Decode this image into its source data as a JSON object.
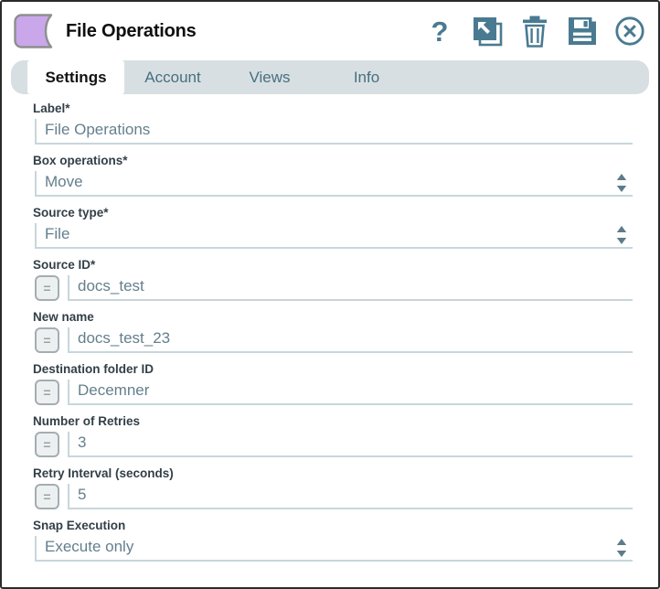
{
  "window": {
    "title": "File Operations"
  },
  "header": {
    "help_glyph": "?",
    "icons": [
      "help-icon",
      "expand-icon",
      "delete-icon",
      "save-icon",
      "close-icon"
    ]
  },
  "tabs": [
    {
      "label": "Settings",
      "active": true
    },
    {
      "label": "Account",
      "active": false
    },
    {
      "label": "Views",
      "active": false
    },
    {
      "label": "Info",
      "active": false
    }
  ],
  "expression_toggle": "=",
  "fields": [
    {
      "label": "Label*",
      "type": "text",
      "value": "File Operations",
      "expr": false
    },
    {
      "label": "Box operations*",
      "type": "select",
      "value": "Move",
      "expr": false
    },
    {
      "label": "Source type*",
      "type": "select",
      "value": "File",
      "expr": false
    },
    {
      "label": "Source ID*",
      "type": "text",
      "value": "docs_test",
      "expr": true
    },
    {
      "label": "New name",
      "type": "text",
      "value": "docs_test_23",
      "expr": true
    },
    {
      "label": "Destination folder ID",
      "type": "text",
      "value": "Decemner",
      "expr": true
    },
    {
      "label": "Number of Retries",
      "type": "text",
      "value": "3",
      "expr": true
    },
    {
      "label": "Retry Interval (seconds)",
      "type": "text",
      "value": "5",
      "expr": true
    },
    {
      "label": "Snap Execution",
      "type": "select",
      "value": "Execute only",
      "expr": false
    }
  ],
  "colors": {
    "icon_slate": "#4a7a91",
    "snap_purple": "#c9a7ea",
    "tab_bar_bg": "#d8dfe2",
    "input_border": "#c7d6dc",
    "label_text": "#323f47",
    "value_text": "#647f8d"
  }
}
